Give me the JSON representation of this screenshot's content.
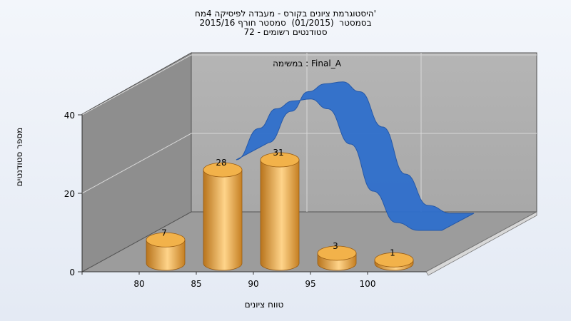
{
  "titles": {
    "line1": "היסטוגרמת ציונים בקורס - מעבדה לפיסיקה 4מח'",
    "line2": "בסמסטר  (01/2015)  סמסטר חורף 2015/16",
    "line3": "סטודנטים רשומים - 72"
  },
  "chart_data": {
    "type": "bar",
    "title": "היסטוגרמת ציונים בקורס - מעבדה לפיסיקה 4מח'",
    "annotation": "במשימה : Final_A",
    "xlabel": "טווח ציונים",
    "ylabel": "מספר סטודנטים",
    "x_ticks": [
      "80",
      "85",
      "90",
      "95",
      "100"
    ],
    "y_ticks": [
      "0",
      "20",
      "40"
    ],
    "ylim": [
      0,
      40
    ],
    "grid": true,
    "bar_color": "#f0a030",
    "curve_color": "#2f6fcc",
    "series": [
      {
        "type": "bar",
        "categories": [
          "80",
          "85",
          "90",
          "95",
          "100"
        ],
        "values": [
          7,
          28,
          31,
          3,
          1
        ],
        "data_labels": [
          "7",
          "28",
          "31",
          "3",
          "1"
        ]
      },
      {
        "type": "line",
        "x": [
          86,
          88,
          89.5,
          91,
          92.5,
          94,
          96,
          98,
          100,
          102,
          104
        ],
        "values": [
          22,
          30,
          35,
          37,
          37.5,
          35,
          26,
          14,
          6,
          4,
          4
        ]
      }
    ]
  }
}
